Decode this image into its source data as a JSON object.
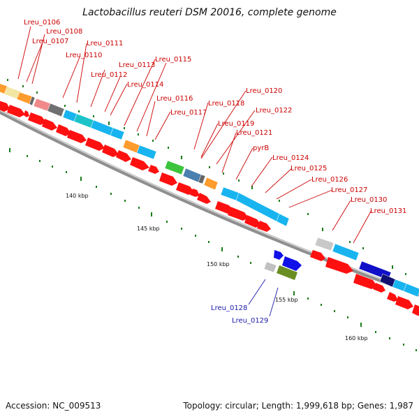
{
  "title": "Lactobacillus reuteri DSM 20016, complete genome",
  "footer": {
    "accession": "Accession: NC_009513",
    "summary": "Topology: circular; Length: 1,999,618 bp; Genes: 1,987"
  },
  "colors": {
    "forward_label": "#cc0000",
    "reverse_label": "#1a1aaa",
    "backbone": "#8a8a8a",
    "cds": "#ff0000",
    "ticks": "#1a7a1a"
  },
  "ruler": [
    {
      "label": "140 kbp"
    },
    {
      "label": "145 kbp"
    },
    {
      "label": "150 kbp"
    },
    {
      "label": "155 kbp"
    },
    {
      "label": "160 kbp"
    }
  ],
  "forward_genes": [
    {
      "label": "Lreu_0106"
    },
    {
      "label": "Lreu_0108"
    },
    {
      "label": "Lreu_0107"
    },
    {
      "label": "Lreu_0111"
    },
    {
      "label": "Lreu_0110"
    },
    {
      "label": "Lreu_0113"
    },
    {
      "label": "Lreu_0115"
    },
    {
      "label": "Lreu_0112"
    },
    {
      "label": "Lreu_0114"
    },
    {
      "label": "Lreu_0116"
    },
    {
      "label": "Lreu_0117"
    },
    {
      "label": "Lreu_0120"
    },
    {
      "label": "Lreu_0118"
    },
    {
      "label": "Lreu_0122"
    },
    {
      "label": "Lreu_0119"
    },
    {
      "label": "Lreu_0121"
    },
    {
      "label": "pyrB"
    },
    {
      "label": "Lreu_0124"
    },
    {
      "label": "Lreu_0125"
    },
    {
      "label": "Lreu_0126"
    },
    {
      "label": "Lreu_0127"
    },
    {
      "label": "Lreu_0130"
    },
    {
      "label": "Lreu_0131"
    }
  ],
  "reverse_genes": [
    {
      "label": "Lreu_0128"
    },
    {
      "label": "Lreu_0129"
    }
  ]
}
